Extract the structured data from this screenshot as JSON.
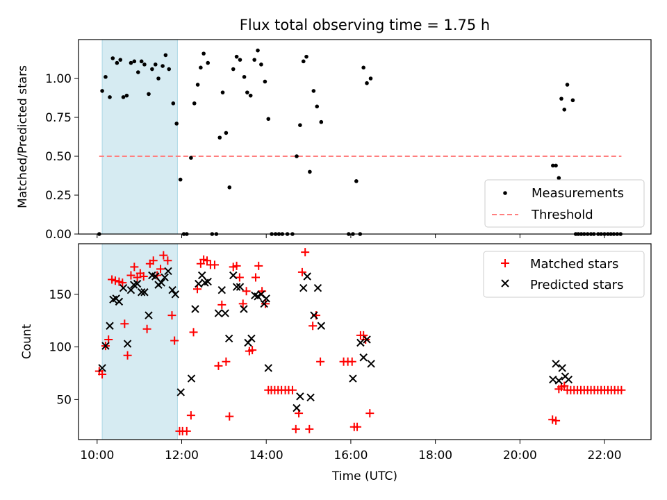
{
  "figure_title": "Flux total observing time = 1.75 h",
  "chart_data": [
    {
      "type": "scatter",
      "ylabel": "Matched/Predicted stars",
      "xlabel": "",
      "xlim": [
        9.56,
        23.1
      ],
      "ylim": [
        0.0,
        1.25
      ],
      "yticks": [
        0.0,
        0.25,
        0.5,
        0.75,
        1.0
      ],
      "ytick_labels": [
        "0.00",
        "0.25",
        "0.50",
        "0.75",
        "1.00"
      ],
      "grid": false,
      "legend_placement": "bottom-right",
      "observing_window": [
        10.12,
        11.9
      ],
      "series": [
        {
          "name": "Measurements",
          "marker": "dot",
          "color": "#000000",
          "x": [
            10.05,
            10.12,
            10.2,
            10.3,
            10.37,
            10.47,
            10.55,
            10.62,
            10.7,
            10.8,
            10.88,
            10.97,
            11.05,
            11.12,
            11.22,
            11.3,
            11.38,
            11.45,
            11.55,
            11.62,
            11.7,
            11.8,
            11.88,
            11.97,
            12.05,
            12.12,
            12.22,
            12.3,
            12.38,
            12.45,
            12.52,
            12.62,
            12.72,
            12.82,
            12.9,
            12.97,
            13.05,
            13.13,
            13.22,
            13.3,
            13.38,
            13.48,
            13.55,
            13.63,
            13.72,
            13.8,
            13.88,
            13.97,
            14.05,
            14.13,
            14.22,
            14.3,
            14.38,
            14.5,
            14.62,
            14.72,
            14.8,
            14.88,
            14.95,
            15.03,
            15.12,
            15.2,
            15.3,
            15.95,
            16.05,
            16.13,
            16.22,
            16.3,
            16.38,
            16.47,
            20.78,
            20.85,
            20.92,
            20.98,
            21.05,
            21.12,
            21.25,
            21.32,
            21.38,
            21.45,
            21.52,
            21.6,
            21.68,
            21.75,
            21.85,
            21.92,
            22.0,
            22.08,
            22.15,
            22.22,
            22.3,
            22.38
          ],
          "y": [
            0.0,
            0.92,
            1.01,
            0.88,
            1.13,
            1.1,
            1.12,
            0.88,
            0.89,
            1.1,
            1.11,
            1.04,
            1.11,
            1.09,
            0.9,
            1.06,
            1.09,
            1.0,
            1.08,
            1.15,
            1.06,
            0.84,
            0.71,
            0.35,
            0.0,
            0.0,
            0.49,
            0.84,
            0.96,
            1.07,
            1.16,
            1.1,
            0.0,
            0.0,
            0.62,
            0.91,
            0.65,
            0.3,
            1.06,
            1.14,
            1.12,
            1.01,
            0.91,
            0.89,
            1.12,
            1.18,
            1.09,
            0.98,
            0.74,
            0.0,
            0.0,
            0.0,
            0.0,
            0.0,
            0.0,
            0.5,
            0.7,
            1.11,
            1.14,
            0.4,
            0.92,
            0.82,
            0.72,
            0.0,
            0.0,
            0.34,
            0.0,
            1.07,
            0.97,
            1.0,
            0.44,
            0.44,
            0.36,
            0.87,
            0.8,
            0.96,
            0.86,
            0.0,
            0.0,
            0.0,
            0.0,
            0.0,
            0.0,
            0.0,
            0.0,
            0.0,
            0.0,
            0.0,
            0.0,
            0.0,
            0.0,
            0.0
          ]
        },
        {
          "name": "Threshold",
          "marker": "dashed-line",
          "color": "#ff7f7f",
          "x": [
            10.05,
            22.4
          ],
          "y": [
            0.5,
            0.5
          ]
        }
      ]
    },
    {
      "type": "scatter",
      "ylabel": "Count",
      "xlabel": "Time (UTC)",
      "xlim": [
        9.56,
        23.1
      ],
      "ylim": [
        12,
        198
      ],
      "yticks": [
        50,
        100,
        150
      ],
      "ytick_labels": [
        "50",
        "100",
        "150"
      ],
      "xticks": [
        10,
        12,
        14,
        16,
        18,
        20,
        22
      ],
      "xtick_labels": [
        "10:00",
        "12:00",
        "14:00",
        "16:00",
        "18:00",
        "20:00",
        "22:00"
      ],
      "grid": false,
      "legend_placement": "top-right",
      "observing_window": [
        10.12,
        11.9
      ],
      "series": [
        {
          "name": "Matched stars",
          "marker": "plus",
          "color": "#ff0000",
          "points": [
            [
              10.05,
              77
            ],
            [
              10.12,
              74
            ],
            [
              10.2,
              101
            ],
            [
              10.27,
              107
            ],
            [
              10.35,
              164
            ],
            [
              10.43,
              163
            ],
            [
              10.52,
              162
            ],
            [
              10.6,
              161
            ],
            [
              10.65,
              122
            ],
            [
              10.72,
              92
            ],
            [
              10.8,
              168
            ],
            [
              10.88,
              176
            ],
            [
              10.95,
              166
            ],
            [
              11.02,
              170
            ],
            [
              11.1,
              167
            ],
            [
              11.18,
              117
            ],
            [
              11.25,
              179
            ],
            [
              11.33,
              182
            ],
            [
              11.42,
              168
            ],
            [
              11.5,
              174
            ],
            [
              11.57,
              187
            ],
            [
              11.67,
              182
            ],
            [
              11.77,
              130
            ],
            [
              11.83,
              106
            ],
            [
              11.95,
              20
            ],
            [
              12.02,
              20
            ],
            [
              12.12,
              20
            ],
            [
              12.22,
              35
            ],
            [
              12.28,
              114
            ],
            [
              12.37,
              155
            ],
            [
              12.45,
              179
            ],
            [
              12.52,
              183
            ],
            [
              12.6,
              182
            ],
            [
              12.68,
              178
            ],
            [
              12.78,
              178
            ],
            [
              12.87,
              82
            ],
            [
              12.95,
              140
            ],
            [
              13.05,
              86
            ],
            [
              13.13,
              34
            ],
            [
              13.22,
              176
            ],
            [
              13.3,
              177
            ],
            [
              13.37,
              166
            ],
            [
              13.45,
              141
            ],
            [
              13.53,
              153
            ],
            [
              13.6,
              96
            ],
            [
              13.67,
              97
            ],
            [
              13.75,
              166
            ],
            [
              13.82,
              177
            ],
            [
              13.9,
              153
            ],
            [
              13.98,
              141
            ],
            [
              14.05,
              59
            ],
            [
              14.12,
              59
            ],
            [
              14.2,
              59
            ],
            [
              14.28,
              59
            ],
            [
              14.36,
              59
            ],
            [
              14.45,
              59
            ],
            [
              14.53,
              59
            ],
            [
              14.62,
              59
            ],
            [
              14.7,
              22
            ],
            [
              14.77,
              37
            ],
            [
              14.85,
              171
            ],
            [
              14.92,
              190
            ],
            [
              15.02,
              22
            ],
            [
              15.1,
              120
            ],
            [
              15.18,
              130
            ],
            [
              15.28,
              86
            ],
            [
              15.83,
              86
            ],
            [
              15.93,
              86
            ],
            [
              16.03,
              86
            ],
            [
              16.08,
              24
            ],
            [
              16.15,
              24
            ],
            [
              16.23,
              111
            ],
            [
              16.3,
              111
            ],
            [
              16.35,
              107
            ],
            [
              16.45,
              37
            ],
            [
              20.77,
              31
            ],
            [
              20.85,
              30
            ],
            [
              20.92,
              60
            ],
            [
              20.98,
              62
            ],
            [
              21.05,
              63
            ],
            [
              21.12,
              59
            ],
            [
              21.2,
              59
            ],
            [
              21.28,
              59
            ],
            [
              21.36,
              59
            ],
            [
              21.44,
              59
            ],
            [
              21.52,
              59
            ],
            [
              21.6,
              59
            ],
            [
              21.68,
              59
            ],
            [
              21.76,
              59
            ],
            [
              21.84,
              59
            ],
            [
              21.92,
              59
            ],
            [
              22.0,
              59
            ],
            [
              22.08,
              59
            ],
            [
              22.16,
              59
            ],
            [
              22.24,
              59
            ],
            [
              22.32,
              59
            ],
            [
              22.4,
              59
            ]
          ]
        },
        {
          "name": "Predicted stars",
          "marker": "x",
          "color": "#000000",
          "points": [
            [
              10.12,
              80
            ],
            [
              10.2,
              101
            ],
            [
              10.3,
              120
            ],
            [
              10.38,
              145
            ],
            [
              10.45,
              146
            ],
            [
              10.52,
              143
            ],
            [
              10.62,
              156
            ],
            [
              10.72,
              103
            ],
            [
              10.8,
              154
            ],
            [
              10.87,
              159
            ],
            [
              10.95,
              160
            ],
            [
              11.05,
              152
            ],
            [
              11.12,
              152
            ],
            [
              11.22,
              130
            ],
            [
              11.3,
              168
            ],
            [
              11.38,
              167
            ],
            [
              11.45,
              159
            ],
            [
              11.52,
              161
            ],
            [
              11.6,
              166
            ],
            [
              11.68,
              172
            ],
            [
              11.78,
              154
            ],
            [
              11.85,
              150
            ],
            [
              11.98,
              57
            ],
            [
              12.23,
              70
            ],
            [
              12.32,
              136
            ],
            [
              12.4,
              160
            ],
            [
              12.48,
              168
            ],
            [
              12.55,
              161
            ],
            [
              12.62,
              162
            ],
            [
              12.87,
              132
            ],
            [
              12.95,
              154
            ],
            [
              13.03,
              132
            ],
            [
              13.12,
              108
            ],
            [
              13.22,
              168
            ],
            [
              13.3,
              157
            ],
            [
              13.38,
              157
            ],
            [
              13.47,
              136
            ],
            [
              13.57,
              104
            ],
            [
              13.65,
              108
            ],
            [
              13.73,
              149
            ],
            [
              13.8,
              148
            ],
            [
              13.88,
              150
            ],
            [
              13.95,
              141
            ],
            [
              14.0,
              146
            ],
            [
              14.05,
              80
            ],
            [
              14.72,
              42
            ],
            [
              14.8,
              53
            ],
            [
              14.88,
              156
            ],
            [
              14.97,
              167
            ],
            [
              15.05,
              52
            ],
            [
              15.13,
              130
            ],
            [
              15.22,
              156
            ],
            [
              15.3,
              120
            ],
            [
              16.05,
              70
            ],
            [
              16.23,
              104
            ],
            [
              16.3,
              90
            ],
            [
              16.38,
              107
            ],
            [
              16.48,
              84
            ],
            [
              20.78,
              69
            ],
            [
              20.85,
              84
            ],
            [
              20.92,
              68
            ],
            [
              21.0,
              80
            ],
            [
              21.07,
              72
            ],
            [
              21.15,
              69
            ]
          ]
        }
      ]
    }
  ]
}
